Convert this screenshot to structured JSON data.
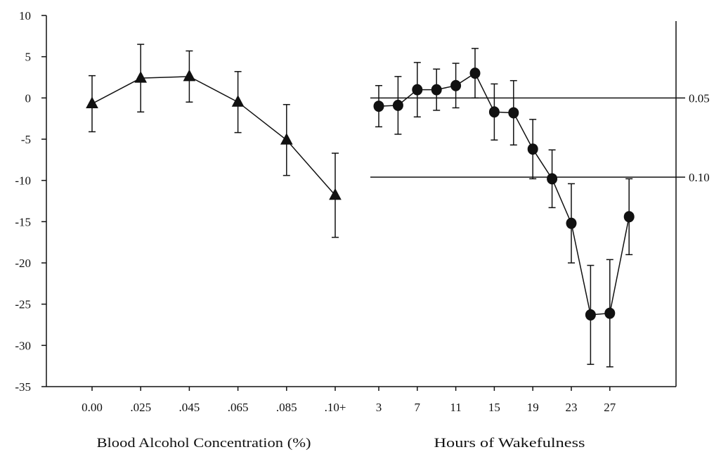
{
  "chart_data": {
    "type": "line",
    "y_axis": {
      "ticks": [
        "10",
        "5",
        "0",
        "-5",
        "-10",
        "-15",
        "-20",
        "-25",
        "-30",
        "-35"
      ],
      "ylim": [
        -35,
        10
      ]
    },
    "panels": [
      {
        "name": "alcohol",
        "xlabel": "Blood Alcohol Concentration (%)",
        "categories": [
          "0.00",
          ".025",
          ".045",
          ".065",
          ".085",
          ".10+"
        ],
        "marker": "triangle",
        "values": [
          -0.7,
          2.4,
          2.6,
          -0.5,
          -5.1,
          -11.8
        ],
        "error": [
          3.4,
          4.1,
          3.1,
          3.7,
          4.3,
          5.1
        ]
      },
      {
        "name": "wakefulness",
        "xlabel": "Hours of Wakefulness",
        "x_ticks": [
          "3",
          "7",
          "11",
          "15",
          "19",
          "23",
          "27"
        ],
        "x": [
          3,
          5,
          7,
          9,
          11,
          13,
          15,
          17,
          19,
          21,
          23,
          25,
          27,
          29
        ],
        "marker": "circle",
        "values": [
          -1.0,
          -0.9,
          1.0,
          1.0,
          1.5,
          3.0,
          -1.7,
          -1.8,
          -6.2,
          -9.8,
          -15.2,
          -26.3,
          -26.1,
          -14.4
        ],
        "error": [
          2.5,
          3.5,
          3.3,
          2.5,
          2.7,
          3.0,
          3.4,
          3.9,
          3.6,
          3.5,
          4.8,
          6.0,
          6.5,
          4.6
        ]
      }
    ],
    "reference_lines": [
      {
        "label": "0.05",
        "y": 0
      },
      {
        "label": "0.10",
        "y": -9.6
      }
    ],
    "grid": false
  }
}
